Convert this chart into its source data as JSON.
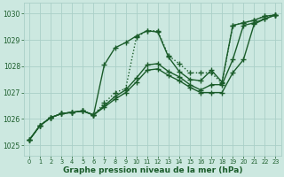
{
  "xlabel": "Graphe pression niveau de la mer (hPa)",
  "bg_color": "#cce8e0",
  "grid_color": "#aacfc8",
  "line_color": "#1a5c2a",
  "xlim": [
    -0.5,
    23.5
  ],
  "ylim": [
    1024.6,
    1030.4
  ],
  "yticks": [
    1025,
    1026,
    1027,
    1028,
    1029,
    1030
  ],
  "xticks": [
    0,
    1,
    2,
    3,
    4,
    5,
    6,
    7,
    8,
    9,
    10,
    11,
    12,
    13,
    14,
    15,
    16,
    17,
    18,
    19,
    20,
    21,
    22,
    23
  ],
  "series": [
    {
      "x": [
        0,
        1,
        2,
        3,
        4,
        5,
        6,
        7,
        8,
        9,
        10,
        11,
        12,
        13,
        14,
        15,
        16,
        17,
        18,
        19,
        20,
        21,
        22,
        23
      ],
      "y": [
        1025.2,
        1025.75,
        1026.05,
        1026.2,
        1026.25,
        1026.3,
        1026.15,
        1028.05,
        1028.7,
        1028.9,
        1029.15,
        1029.35,
        1029.3,
        1028.35,
        1027.8,
        1027.5,
        1027.45,
        1027.85,
        1027.4,
        1029.55,
        1029.65,
        1029.75,
        1029.9,
        1029.95
      ],
      "linestyle": "-",
      "marker": "+",
      "markersize": 4.5,
      "linewidth": 1.0
    },
    {
      "x": [
        0,
        1,
        2,
        3,
        4,
        5,
        6,
        7,
        8,
        9,
        10,
        11,
        12,
        13,
        14,
        15,
        16,
        17,
        18,
        19,
        20,
        21,
        22,
        23
      ],
      "y": [
        1025.2,
        1025.75,
        1026.05,
        1026.2,
        1026.25,
        1026.3,
        1026.15,
        1026.5,
        1026.85,
        1027.1,
        1027.55,
        1028.05,
        1028.1,
        1027.8,
        1027.6,
        1027.3,
        1027.1,
        1027.3,
        1027.3,
        1028.25,
        1029.55,
        1029.65,
        1029.8,
        1029.95
      ],
      "linestyle": "-",
      "marker": "+",
      "markersize": 4.5,
      "linewidth": 1.0
    },
    {
      "x": [
        0,
        1,
        2,
        3,
        4,
        5,
        6,
        7,
        8,
        9,
        10,
        11,
        12,
        13,
        14,
        15,
        16,
        17,
        18,
        19,
        20,
        21,
        22,
        23
      ],
      "y": [
        1025.2,
        1025.75,
        1026.05,
        1026.2,
        1026.25,
        1026.3,
        1026.15,
        1026.45,
        1026.75,
        1027.0,
        1027.4,
        1027.85,
        1027.9,
        1027.65,
        1027.45,
        1027.2,
        1027.0,
        1027.0,
        1027.0,
        1027.75,
        1028.25,
        1029.6,
        1029.8,
        1029.95
      ],
      "linestyle": "-",
      "marker": "+",
      "markersize": 4.5,
      "linewidth": 1.0
    },
    {
      "x": [
        0,
        1,
        2,
        3,
        4,
        5,
        6,
        7,
        8,
        9,
        10,
        11,
        12,
        13,
        14,
        15,
        16,
        17,
        18,
        19,
        20,
        21,
        22,
        23
      ],
      "y": [
        1025.2,
        1025.75,
        1026.05,
        1026.2,
        1026.25,
        1026.3,
        1026.15,
        1026.6,
        1027.0,
        1027.15,
        1029.1,
        1029.35,
        1029.35,
        1028.4,
        1028.1,
        1027.75,
        1027.75,
        1027.75,
        1027.35,
        1029.55,
        1029.65,
        1029.75,
        1029.9,
        1029.95
      ],
      "linestyle": ":",
      "marker": "+",
      "markersize": 4.5,
      "linewidth": 1.0
    }
  ]
}
